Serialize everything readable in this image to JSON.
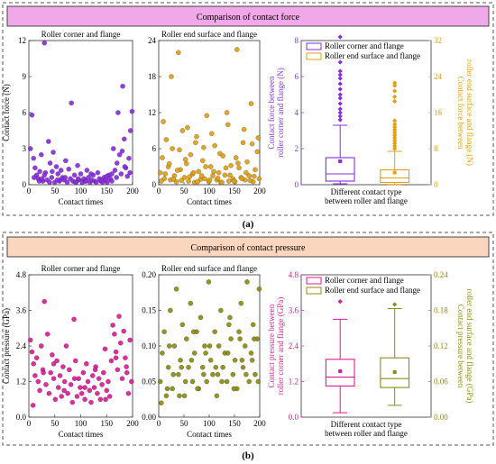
{
  "panel_a": {
    "banner": "Comparison of contact force",
    "caption": "(a)"
  },
  "panel_b": {
    "banner": "Comparison of contact pressure",
    "caption": "(b)"
  },
  "colors": {
    "a_banner": "#f0a8e8",
    "b_banner": "#fad6bf",
    "corner_force": "#8a2be2",
    "end_force": "#e0a010",
    "corner_pressure": "#e0189a",
    "end_pressure": "#8c8c10"
  },
  "chart_data": [
    {
      "id": "a1",
      "type": "scatter",
      "title": "Roller corner and flange",
      "xlabel": "Contact times",
      "ylabel": "Contact force (N)",
      "xlim": [
        0,
        200
      ],
      "ylim": [
        0,
        12
      ],
      "xticks": [
        0,
        50,
        100,
        150,
        200
      ],
      "yticks": [
        0,
        3,
        6,
        9,
        12
      ],
      "x": [
        3,
        6,
        9,
        12,
        15,
        18,
        21,
        24,
        27,
        30,
        32,
        35,
        38,
        41,
        44,
        47,
        50,
        53,
        56,
        59,
        62,
        65,
        68,
        71,
        74,
        77,
        80,
        82,
        85,
        88,
        91,
        94,
        97,
        100,
        103,
        106,
        109,
        112,
        115,
        118,
        121,
        124,
        127,
        130,
        133,
        136,
        139,
        142,
        145,
        148,
        151,
        154,
        157,
        160,
        163,
        166,
        169,
        172,
        175,
        178,
        181,
        184,
        187,
        190,
        193,
        196,
        199,
        10,
        30,
        45,
        60,
        95,
        120,
        150,
        170,
        185,
        20,
        40,
        70,
        110,
        140,
        160,
        180,
        195,
        25,
        55,
        90
      ],
      "y": [
        3.0,
        5.8,
        2.2,
        1.4,
        0.8,
        0.5,
        1.1,
        2.5,
        0.3,
        11.8,
        1.0,
        0.4,
        3.6,
        1.8,
        0.6,
        2.7,
        0.2,
        1.5,
        0.9,
        0.3,
        1.2,
        0.6,
        0.4,
        2.0,
        0.2,
        1.3,
        0.5,
        6.8,
        0.3,
        0.8,
        0.2,
        1.6,
        0.4,
        0.9,
        0.2,
        0.5,
        0.3,
        1.2,
        0.6,
        0.2,
        0.4,
        0.8,
        0.3,
        0.2,
        1.0,
        0.5,
        0.3,
        0.2,
        0.6,
        0.4,
        0.2,
        0.8,
        0.5,
        0.3,
        3.0,
        1.2,
        0.6,
        6.0,
        2.5,
        0.9,
        8.2,
        3.8,
        1.4,
        0.7,
        2.2,
        4.5,
        6.1,
        0.6,
        0.8,
        1.1,
        0.4,
        0.5,
        0.9,
        0.7,
        1.8,
        1.5,
        0.3,
        0.2,
        0.6,
        0.3,
        0.4,
        0.9,
        2.8,
        1.0,
        0.5,
        0.4,
        0.2
      ]
    },
    {
      "id": "a2",
      "type": "scatter",
      "title": "Roller end surface and flange",
      "xlabel": "Contact times",
      "ylabel": "",
      "xlim": [
        0,
        200
      ],
      "ylim": [
        0,
        24
      ],
      "xticks": [
        0,
        50,
        100,
        150,
        200
      ],
      "yticks": [
        0,
        6,
        12,
        18,
        24
      ],
      "x": [
        3,
        7,
        11,
        15,
        19,
        23,
        27,
        31,
        35,
        39,
        43,
        47,
        51,
        55,
        59,
        63,
        67,
        71,
        75,
        79,
        83,
        87,
        91,
        95,
        99,
        103,
        107,
        111,
        115,
        119,
        123,
        127,
        131,
        135,
        139,
        143,
        147,
        151,
        155,
        159,
        163,
        167,
        171,
        175,
        179,
        183,
        187,
        191,
        195,
        199,
        5,
        13,
        21,
        29,
        37,
        45,
        53,
        61,
        69,
        77,
        85,
        93,
        101,
        109,
        117,
        125,
        133,
        141,
        149,
        157,
        165,
        173,
        181,
        189,
        197,
        9,
        25,
        41,
        57,
        73,
        89,
        105,
        121,
        137,
        153,
        169,
        185
      ],
      "y": [
        2.0,
        4.5,
        1.0,
        7.5,
        3.0,
        0.8,
        6.0,
        1.5,
        0.5,
        22.0,
        2.5,
        9.0,
        1.2,
        3.5,
        0.6,
        5.0,
        1.8,
        0.4,
        8.0,
        2.2,
        0.9,
        4.0,
        1.0,
        11.5,
        0.5,
        3.0,
        1.5,
        6.5,
        0.8,
        2.0,
        0.4,
        4.8,
        1.6,
        12.0,
        0.6,
        3.2,
        1.0,
        0.5,
        22.5,
        2.8,
        1.2,
        7.0,
        0.8,
        3.8,
        1.5,
        13.5,
        0.5,
        2.5,
        5.5,
        1.0,
        0.6,
        1.8,
        3.5,
        0.9,
        2.4,
        0.7,
        4.2,
        1.3,
        2.0,
        0.5,
        1.5,
        3.0,
        0.8,
        2.2,
        1.1,
        0.4,
        2.8,
        1.6,
        0.6,
        3.6,
        1.0,
        2.0,
        0.7,
        1.4,
        7.8,
        10.5,
        18.0,
        5.8,
        9.5,
        7.0,
        6.2,
        8.5,
        5.2,
        10.0,
        4.5,
        9.2,
        6.8
      ]
    },
    {
      "id": "a3",
      "type": "box",
      "xlabel": "Different contact type between roller and flange",
      "ylabel_left": "Contact force between roller corner and flange (N)",
      "ylabel_right": "Contact force between roller end surface and flange (N)",
      "ylim_left": [
        0,
        8
      ],
      "ylim_right": [
        0,
        32
      ],
      "yticks_left": [
        0,
        2,
        4,
        6,
        8
      ],
      "yticks_right": [
        0,
        8,
        16,
        24,
        32
      ],
      "legend": [
        "Roller corner and flange",
        "Roller end surface and flange"
      ],
      "boxes": [
        {
          "name": "Roller corner and flange",
          "axis": "left",
          "min": 0.05,
          "q1": 0.2,
          "median": 0.6,
          "q3": 1.5,
          "max": 3.3,
          "mean": 1.3,
          "outliers": [
            3.6,
            3.8,
            4.0,
            4.2,
            4.5,
            4.8,
            5.0,
            5.3,
            5.6,
            5.9,
            6.1,
            6.3,
            6.8,
            8.2
          ]
        },
        {
          "name": "Roller end surface and flange",
          "axis": "right",
          "min": 0.05,
          "q1": 0.5,
          "median": 1.5,
          "q3": 3.3,
          "max": 7.4,
          "mean": 2.7,
          "outliers": [
            8.0,
            8.6,
            9.2,
            9.8,
            10.4,
            11.0,
            11.6,
            12.2,
            12.8,
            13.4,
            14.2,
            18.5,
            19.5,
            20.8,
            22.0,
            22.6
          ]
        }
      ]
    },
    {
      "id": "b1",
      "type": "scatter",
      "title": "Roller corner and flange",
      "xlabel": "Contact times",
      "ylabel": "Contact pressure (GPa)",
      "xlim": [
        0,
        200
      ],
      "ylim": [
        0,
        4.8
      ],
      "xticks": [
        0,
        50,
        100,
        150,
        200
      ],
      "yticks": [
        0.0,
        1.2,
        2.4,
        3.6,
        4.8
      ],
      "x": [
        3,
        6,
        9,
        12,
        15,
        18,
        21,
        24,
        27,
        30,
        33,
        36,
        39,
        42,
        45,
        48,
        51,
        54,
        57,
        60,
        63,
        66,
        69,
        72,
        75,
        78,
        81,
        84,
        87,
        90,
        93,
        96,
        99,
        102,
        105,
        108,
        111,
        114,
        117,
        120,
        123,
        126,
        129,
        132,
        135,
        138,
        141,
        144,
        147,
        150,
        153,
        156,
        159,
        162,
        165,
        168,
        171,
        174,
        177,
        180,
        183,
        186,
        189,
        192,
        195,
        198,
        8,
        28,
        48,
        68,
        88,
        108,
        128,
        148,
        168,
        188
      ],
      "y": [
        2.6,
        2.2,
        1.8,
        1.4,
        2.0,
        1.2,
        0.9,
        2.4,
        1.6,
        3.9,
        1.1,
        2.8,
        0.8,
        1.5,
        2.1,
        1.3,
        0.6,
        1.9,
        1.0,
        1.4,
        0.7,
        1.7,
        1.2,
        2.4,
        0.8,
        1.6,
        1.1,
        0.5,
        3.3,
        1.9,
        0.7,
        1.3,
        1.0,
        0.8,
        1.5,
        0.6,
        1.8,
        1.2,
        0.9,
        0.5,
        1.4,
        1.0,
        1.7,
        0.8,
        1.3,
        0.6,
        1.1,
        1.5,
        2.3,
        0.9,
        1.2,
        0.7,
        1.9,
        3.1,
        2.8,
        2.2,
        1.6,
        3.4,
        2.5,
        1.3,
        2.9,
        2.0,
        1.5,
        0.8,
        2.6,
        1.2,
        0.4,
        1.5,
        1.8,
        0.9,
        1.3,
        1.0,
        1.6,
        0.6,
        2.0,
        1.7
      ]
    },
    {
      "id": "b2",
      "type": "scatter",
      "title": "Roller end surface and flange",
      "xlabel": "Contact times",
      "ylabel": "",
      "xlim": [
        0,
        200
      ],
      "ylim": [
        0.0,
        0.2
      ],
      "xticks": [
        0,
        50,
        100,
        150,
        200
      ],
      "yticks": [
        0.0,
        0.05,
        0.1,
        0.15,
        0.2
      ],
      "x": [
        3,
        7,
        11,
        15,
        19,
        23,
        27,
        31,
        35,
        39,
        43,
        47,
        51,
        55,
        59,
        63,
        67,
        71,
        75,
        79,
        83,
        87,
        91,
        95,
        99,
        103,
        107,
        111,
        115,
        119,
        123,
        127,
        131,
        135,
        139,
        143,
        147,
        151,
        155,
        159,
        163,
        167,
        171,
        175,
        179,
        183,
        187,
        191,
        195,
        199,
        5,
        17,
        29,
        41,
        53,
        65,
        77,
        89,
        101,
        113,
        125,
        137,
        149,
        161,
        173,
        185,
        197,
        21,
        45,
        69,
        93,
        117,
        141,
        165,
        189
      ],
      "y": [
        0.05,
        0.09,
        0.12,
        0.03,
        0.07,
        0.15,
        0.04,
        0.1,
        0.18,
        0.06,
        0.08,
        0.13,
        0.03,
        0.11,
        0.07,
        0.16,
        0.05,
        0.09,
        0.12,
        0.04,
        0.14,
        0.07,
        0.1,
        0.05,
        0.19,
        0.08,
        0.06,
        0.12,
        0.03,
        0.1,
        0.15,
        0.07,
        0.09,
        0.05,
        0.13,
        0.11,
        0.06,
        0.08,
        0.04,
        0.12,
        0.16,
        0.07,
        0.1,
        0.19,
        0.05,
        0.09,
        0.13,
        0.06,
        0.11,
        0.18,
        0.02,
        0.04,
        0.06,
        0.03,
        0.05,
        0.08,
        0.04,
        0.06,
        0.1,
        0.07,
        0.05,
        0.09,
        0.04,
        0.11,
        0.06,
        0.08,
        0.05,
        0.1,
        0.07,
        0.12,
        0.09,
        0.06,
        0.14,
        0.08,
        0.11
      ]
    },
    {
      "id": "b3",
      "type": "box",
      "xlabel": "Different contact type between roller and flange",
      "ylabel_left": "Contact pressure between roller corner and flange (GPa)",
      "ylabel_right": "Contact pressure between roller end surface and flange (GPa)",
      "ylim_left": [
        0,
        4.8
      ],
      "ylim_right": [
        0,
        0.24
      ],
      "yticks_left": [
        0.0,
        1.2,
        2.4,
        3.6,
        4.8
      ],
      "yticks_right": [
        0.0,
        0.06,
        0.12,
        0.18,
        0.24
      ],
      "legend": [
        "Roller corner and flange",
        "Roller end surface and flange"
      ],
      "boxes": [
        {
          "name": "Roller corner and flange",
          "axis": "left",
          "min": 0.15,
          "q1": 1.05,
          "median": 1.35,
          "q3": 1.95,
          "max": 3.3,
          "mean": 1.55,
          "outliers": [
            3.9
          ]
        },
        {
          "name": "Roller end surface and flange",
          "axis": "right",
          "min": 0.02,
          "q1": 0.05,
          "median": 0.065,
          "q3": 0.1,
          "max": 0.183,
          "mean": 0.076,
          "outliers": [
            0.19
          ]
        }
      ]
    }
  ]
}
